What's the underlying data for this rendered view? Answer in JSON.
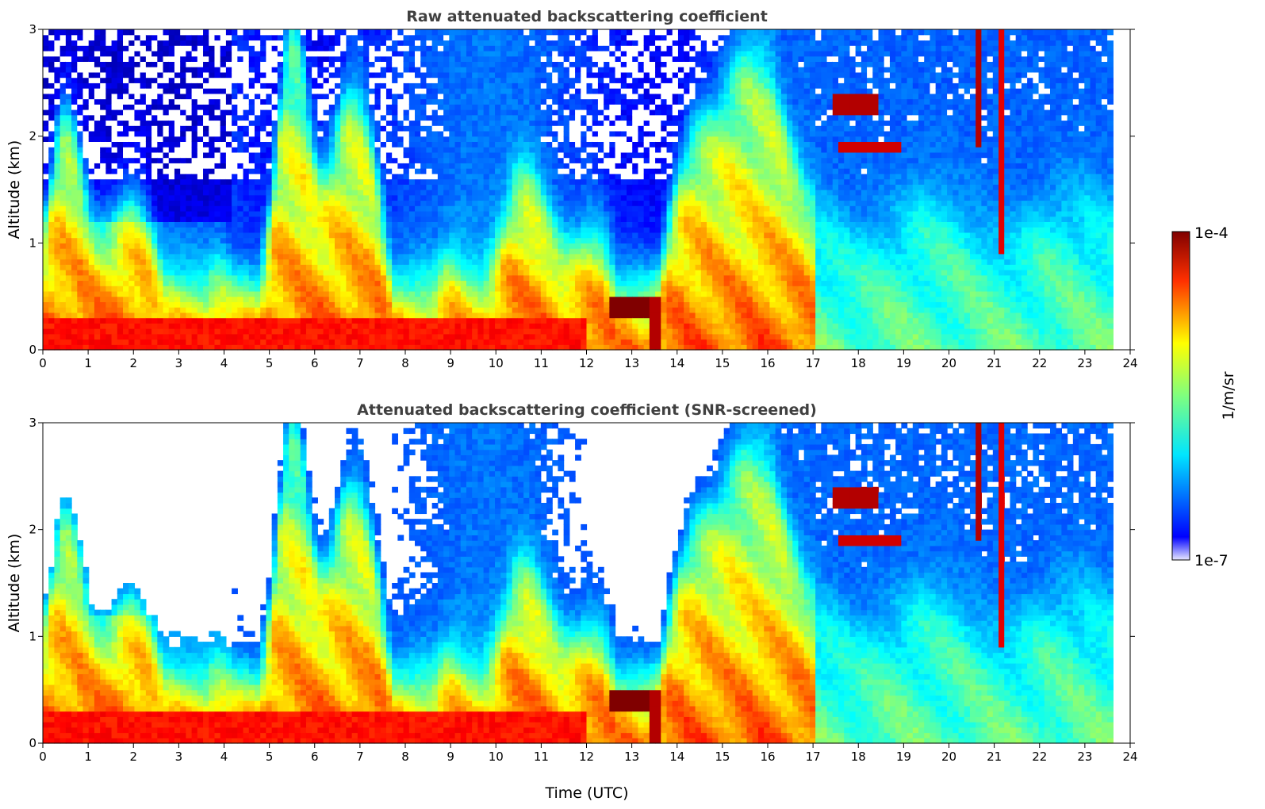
{
  "chart_data": [
    {
      "type": "heatmap",
      "title": "Raw attenuated backscattering coefficient",
      "xlabel": "",
      "ylabel": "Altitude (km)",
      "xlim": [
        0,
        24
      ],
      "ylim": [
        0,
        3
      ],
      "x_ticks": [
        "0",
        "1",
        "2",
        "3",
        "4",
        "5",
        "6",
        "7",
        "8",
        "9",
        "10",
        "11",
        "12",
        "13",
        "14",
        "15",
        "16",
        "17",
        "18",
        "19",
        "20",
        "21",
        "22",
        "23",
        "24"
      ],
      "y_ticks": [
        "0",
        "1",
        "2",
        "3"
      ],
      "data_end_time": 23.65,
      "screened": false
    },
    {
      "type": "heatmap",
      "title": "Attenuated backscattering coefficient (SNR-screened)",
      "xlabel": "Time (UTC)",
      "ylabel": "Altitude (km)",
      "xlim": [
        0,
        24
      ],
      "ylim": [
        0,
        3
      ],
      "x_ticks": [
        "0",
        "1",
        "2",
        "3",
        "4",
        "5",
        "6",
        "7",
        "8",
        "9",
        "10",
        "11",
        "12",
        "13",
        "14",
        "15",
        "16",
        "17",
        "18",
        "19",
        "20",
        "21",
        "22",
        "23",
        "24"
      ],
      "y_ticks": [
        "0",
        "1",
        "2",
        "3"
      ],
      "data_end_time": 23.65,
      "screened": true
    }
  ],
  "colorbar": {
    "label": "1/m/sr",
    "max_label": "1e-4",
    "min_label": "1e-7",
    "colormap": "jet",
    "scale": "log"
  }
}
